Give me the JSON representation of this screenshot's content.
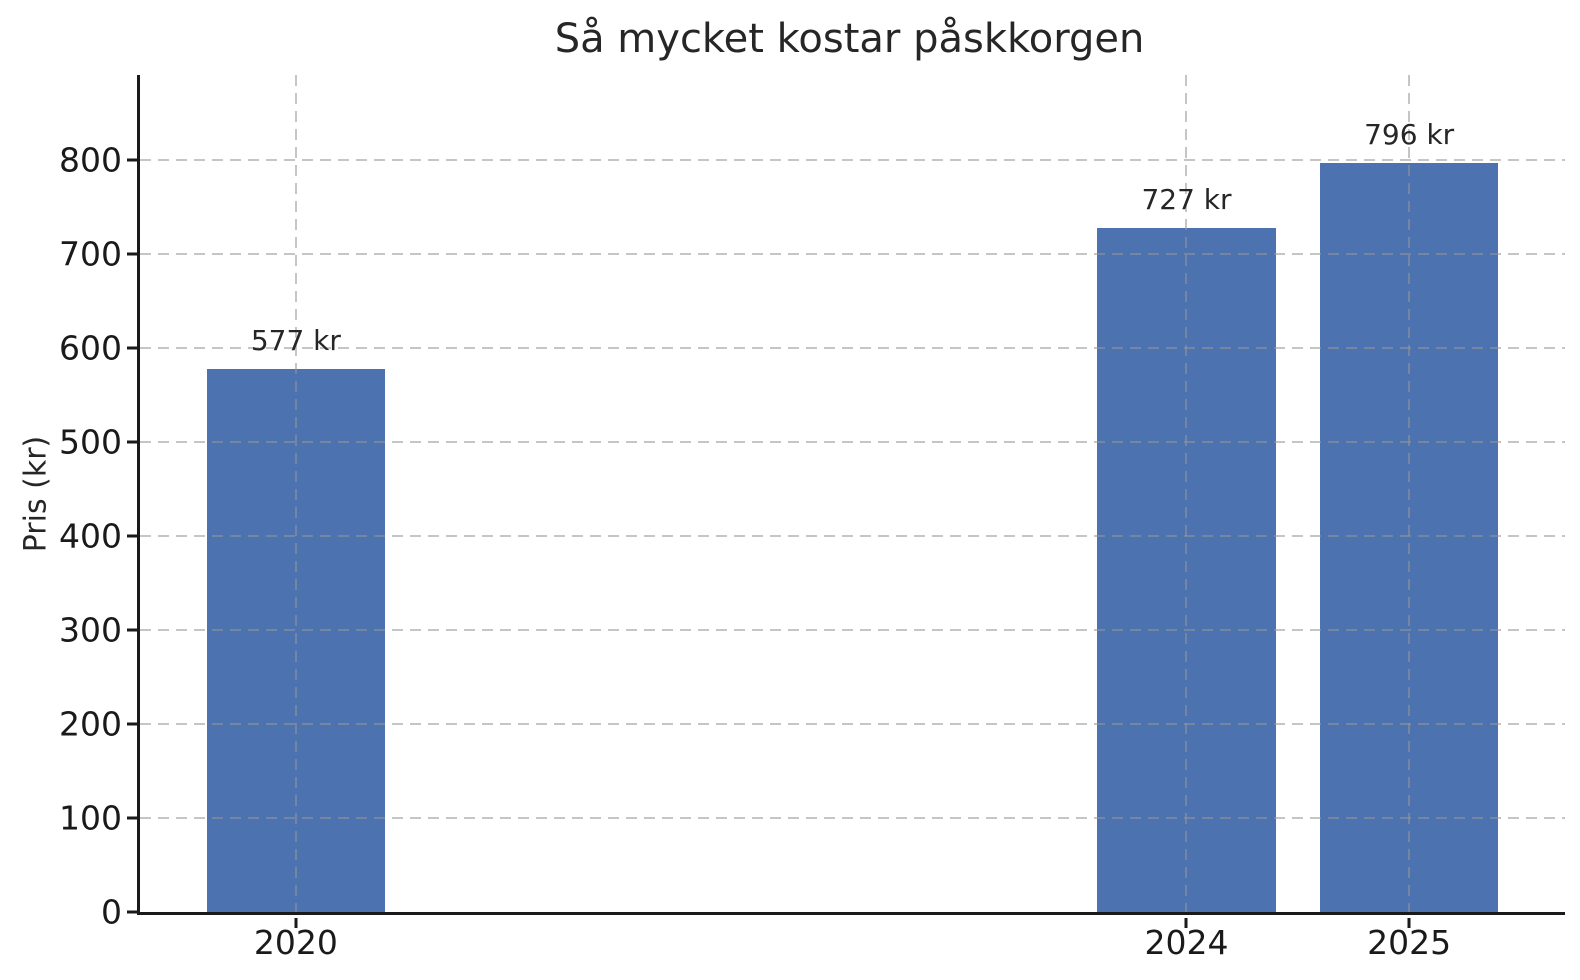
{
  "colors": {
    "bar": "#4C72B0",
    "grid": "#c5c5c5",
    "axis": "#1a1a1a",
    "text": "#262626",
    "background": "#ffffff"
  },
  "chart_data": {
    "type": "bar",
    "title": "Så mycket kostar påskkorgen",
    "xlabel": "",
    "ylabel": "Pris (kr)",
    "categories": [
      "2020",
      "2024",
      "2025"
    ],
    "x": [
      2020,
      2024,
      2025
    ],
    "values": [
      577,
      727,
      796
    ],
    "bar_labels": [
      "577 kr",
      "727 kr",
      "796 kr"
    ],
    "unit": "kr",
    "bar_width_x_units": 0.8,
    "xlim": [
      2019.3,
      2025.7
    ],
    "ylim": [
      0,
      890
    ],
    "yticks": [
      0,
      100,
      200,
      300,
      400,
      500,
      600,
      700,
      800
    ],
    "grid": {
      "horizontal": true,
      "vertical": true,
      "line_style": "dashed",
      "drawn_over_bars": true
    },
    "legend": "none"
  }
}
